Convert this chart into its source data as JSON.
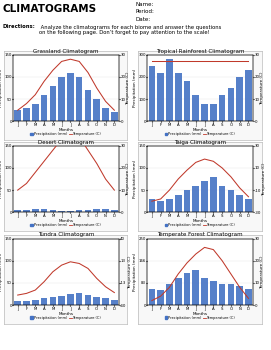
{
  "title": "CLIMATOGRAMS",
  "header_right": "Name:\nPeriod:\nDate:",
  "months": [
    "J",
    "F",
    "M",
    "A",
    "M",
    "J",
    "J",
    "A",
    "S",
    "O",
    "N",
    "D"
  ],
  "biomes": [
    {
      "title": "Grassland Climatogram",
      "precip": [
        25,
        30,
        40,
        60,
        80,
        100,
        110,
        100,
        70,
        50,
        30,
        20
      ],
      "temp": [
        5,
        8,
        12,
        18,
        23,
        27,
        28,
        27,
        22,
        15,
        9,
        5
      ],
      "precip_max": 150,
      "temp_min": 0,
      "temp_max": 30
    },
    {
      "title": "Tropical Rainforest Climatogram",
      "precip": [
        250,
        220,
        280,
        220,
        180,
        120,
        80,
        80,
        120,
        150,
        200,
        230
      ],
      "temp": [
        27,
        27,
        27,
        27,
        27,
        27,
        27,
        27,
        27,
        27,
        27,
        27
      ],
      "precip_max": 300,
      "temp_min": 0,
      "temp_max": 30
    },
    {
      "title": "Desert Climatogram",
      "precip": [
        5,
        5,
        8,
        8,
        5,
        3,
        3,
        5,
        5,
        8,
        8,
        5
      ],
      "temp": [
        10,
        13,
        18,
        23,
        28,
        33,
        35,
        34,
        28,
        22,
        15,
        10
      ],
      "precip_max": 150,
      "temp_min": 0,
      "temp_max": 30
    },
    {
      "title": "Taiga Climatogram",
      "precip": [
        30,
        25,
        30,
        40,
        50,
        60,
        70,
        80,
        60,
        50,
        40,
        30
      ],
      "temp": [
        -20,
        -18,
        -10,
        0,
        8,
        15,
        18,
        16,
        10,
        2,
        -8,
        -16
      ],
      "precip_max": 150,
      "temp_min": -30,
      "temp_max": 30
    },
    {
      "title": "Tundra Climatogram",
      "precip": [
        10,
        10,
        12,
        15,
        18,
        20,
        25,
        28,
        22,
        18,
        15,
        12
      ],
      "temp": [
        -28,
        -26,
        -22,
        -12,
        0,
        8,
        12,
        10,
        4,
        -8,
        -18,
        -25
      ],
      "precip_max": 150,
      "temp_min": -40,
      "temp_max": 40
    },
    {
      "title": "Temperate Forest Climatogram",
      "precip": [
        60,
        55,
        80,
        100,
        120,
        130,
        100,
        90,
        80,
        80,
        70,
        60
      ],
      "temp": [
        2,
        4,
        8,
        14,
        19,
        23,
        26,
        25,
        20,
        14,
        8,
        3
      ],
      "precip_max": 250,
      "temp_min": 0,
      "temp_max": 30
    }
  ],
  "bar_color": "#4472C4",
  "line_color": "#C0392B",
  "bg_color": "#FFFFFF",
  "title_fontsize": 5.5,
  "chart_title_fontsize": 4.0,
  "axis_fontsize": 3.0,
  "tick_fontsize": 2.8,
  "legend_fontsize": 2.5,
  "main_title_fontsize": 7.5,
  "info_fontsize": 4.0,
  "dir_fontsize": 3.8
}
